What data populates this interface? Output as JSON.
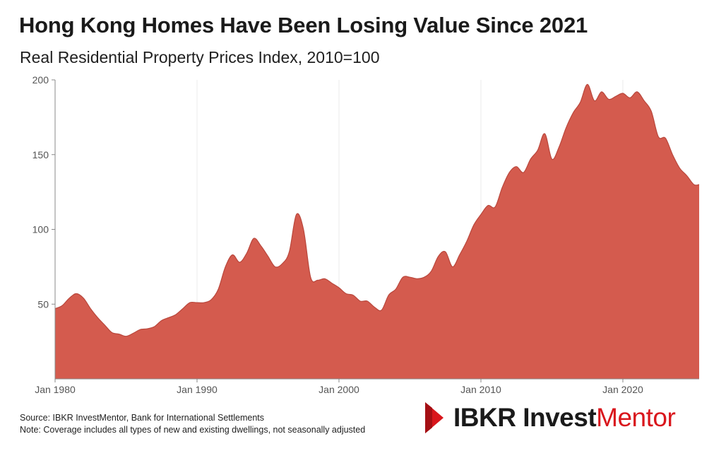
{
  "header": {
    "title": "Hong Kong Homes Have Been Losing Value Since 2021",
    "subtitle": "Real Residential Property Prices Index, 2010=100"
  },
  "footer": {
    "source": "Source: IBKR InvestMentor, Bank for International Settlements",
    "note": "Note: Coverage includes all types of new and existing dwellings, not seasonally adjusted"
  },
  "logo": {
    "part1": "IBKR Invest",
    "part2": "Mentor",
    "brand_color": "#d9161c"
  },
  "chart_data": {
    "type": "area",
    "color": "#d45b4e",
    "edge_color": "#b9473c",
    "xlim": [
      1980.0,
      2025.375
    ],
    "ylim": [
      0,
      200
    ],
    "x_tick_values": [
      1980,
      1990,
      2000,
      2010,
      2020
    ],
    "x_tick_labels": [
      "Jan 1980",
      "Jan 1990",
      "Jan 2000",
      "Jan 2010",
      "Jan 2020"
    ],
    "y_tick_values": [
      50,
      100,
      150,
      200
    ],
    "y_tick_labels": [
      "50",
      "100",
      "150",
      "200"
    ],
    "grid": "vertical",
    "x": [
      1980.0,
      1980.5,
      1981.0,
      1981.5,
      1982.0,
      1982.5,
      1983.0,
      1983.5,
      1984.0,
      1984.5,
      1985.0,
      1985.5,
      1986.0,
      1986.5,
      1987.0,
      1987.5,
      1988.0,
      1988.5,
      1989.0,
      1989.5,
      1990.0,
      1990.5,
      1991.0,
      1991.5,
      1992.0,
      1992.5,
      1993.0,
      1993.5,
      1994.0,
      1994.5,
      1995.0,
      1995.5,
      1996.0,
      1996.5,
      1997.0,
      1997.5,
      1998.0,
      1998.5,
      1999.0,
      1999.5,
      2000.0,
      2000.5,
      2001.0,
      2001.5,
      2002.0,
      2002.5,
      2003.0,
      2003.5,
      2004.0,
      2004.5,
      2005.0,
      2005.5,
      2006.0,
      2006.5,
      2007.0,
      2007.5,
      2008.0,
      2008.5,
      2009.0,
      2009.5,
      2010.0,
      2010.5,
      2011.0,
      2011.5,
      2012.0,
      2012.5,
      2013.0,
      2013.5,
      2014.0,
      2014.5,
      2015.0,
      2015.5,
      2016.0,
      2016.5,
      2017.0,
      2017.5,
      2018.0,
      2018.5,
      2019.0,
      2019.5,
      2020.0,
      2020.5,
      2021.0,
      2021.5,
      2022.0,
      2022.5,
      2023.0,
      2023.5,
      2024.0,
      2024.5,
      2025.0,
      2025.375
    ],
    "values": [
      47,
      49,
      54,
      57,
      54,
      47,
      41,
      36,
      31,
      30,
      28.5,
      30.5,
      33,
      33.5,
      35,
      39,
      41,
      43,
      47,
      51,
      51,
      51,
      53,
      60,
      75,
      83,
      78,
      84,
      94,
      89,
      82,
      75,
      77,
      85,
      110,
      100,
      68,
      66,
      67,
      64,
      61,
      57,
      56,
      52,
      52,
      48,
      46,
      56,
      60,
      68,
      68,
      67,
      68,
      72,
      82,
      85,
      75,
      83,
      92,
      103,
      110,
      116,
      115,
      128,
      138,
      142,
      138,
      147,
      153,
      164,
      147,
      155,
      168,
      178,
      185,
      197,
      186,
      192,
      187,
      189,
      191,
      188,
      192,
      186,
      179,
      162,
      161,
      150,
      141,
      136,
      130,
      130
    ]
  }
}
